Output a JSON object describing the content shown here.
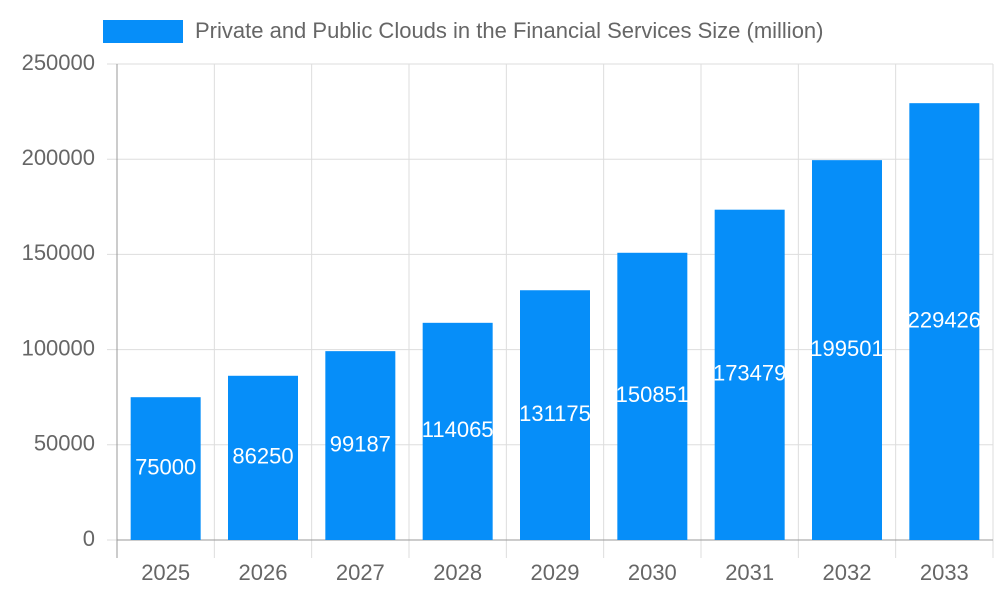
{
  "chart_data": {
    "type": "bar",
    "categories": [
      "2025",
      "2026",
      "2027",
      "2028",
      "2029",
      "2030",
      "2031",
      "2032",
      "2033"
    ],
    "series": [
      {
        "name": "Private and Public Clouds in the Financial Services Size (million)",
        "color": "#068ef9",
        "values": [
          75000,
          86250,
          99187,
          114065,
          131175,
          150851,
          173479,
          199501,
          229426
        ]
      }
    ],
    "ylim": [
      0,
      250000
    ],
    "yticks": [
      0,
      50000,
      100000,
      150000,
      200000,
      250000
    ],
    "grid": true,
    "legend": "top"
  }
}
